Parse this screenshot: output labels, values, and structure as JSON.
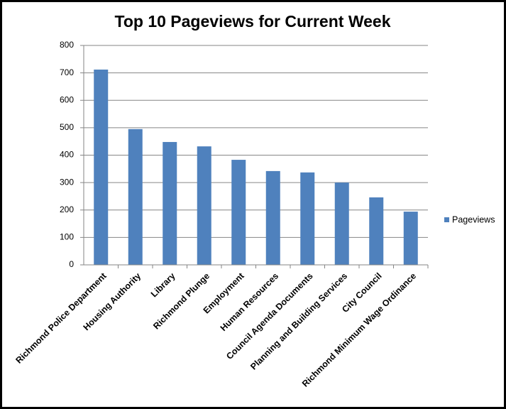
{
  "chart_data": {
    "type": "bar",
    "title": "Top 10 Pageviews for Current Week",
    "categories": [
      "Richmond Police Department",
      "Housing Authority",
      "Library",
      "Richmond Plunge",
      "Employment",
      "Human Resources",
      "Council Agenda Documents",
      "Planning and Building Services",
      "City Council",
      "Richmond Minimum Wage Ordinance"
    ],
    "series": [
      {
        "name": "Pageviews",
        "color": "#4f81bd",
        "values": [
          712,
          495,
          448,
          432,
          383,
          342,
          337,
          300,
          246,
          194
        ]
      }
    ],
    "ylim": [
      0,
      800
    ],
    "yticks": [
      0,
      100,
      200,
      300,
      400,
      500,
      600,
      700,
      800
    ],
    "grid": true,
    "legend": "right"
  }
}
